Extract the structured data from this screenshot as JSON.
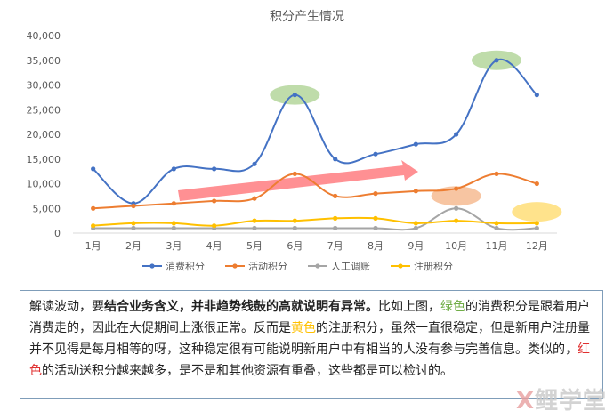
{
  "chart_data": {
    "type": "line",
    "title": "积分产生情况",
    "categories": [
      "1月",
      "2月",
      "3月",
      "4月",
      "5月",
      "6月",
      "7月",
      "8月",
      "9月",
      "10月",
      "11月",
      "12月"
    ],
    "ylim": [
      0,
      40000
    ],
    "yticks": [
      "0",
      "5,000",
      "10,000",
      "15,000",
      "20,000",
      "25,000",
      "30,000",
      "35,000",
      "40,000"
    ],
    "ytick_values": [
      0,
      5000,
      10000,
      15000,
      20000,
      25000,
      30000,
      35000,
      40000
    ],
    "grid": false,
    "legend_position": "bottom",
    "series": [
      {
        "name": "消费积分",
        "color": "#4472c4",
        "values": [
          13000,
          6000,
          13000,
          13000,
          14000,
          28000,
          15000,
          16000,
          18000,
          20000,
          35000,
          28000
        ]
      },
      {
        "name": "活动积分",
        "color": "#ed7d31",
        "values": [
          5000,
          5500,
          6000,
          6500,
          7000,
          12000,
          7500,
          8000,
          8500,
          9000,
          12000,
          10000
        ]
      },
      {
        "name": "人工调账",
        "color": "#a5a5a5",
        "values": [
          1000,
          1000,
          1000,
          1000,
          1000,
          1000,
          1000,
          1000,
          1000,
          5000,
          1000,
          1000
        ]
      },
      {
        "name": "注册积分",
        "color": "#ffc000",
        "values": [
          1500,
          2000,
          2000,
          1500,
          2500,
          2500,
          3000,
          3000,
          2000,
          2500,
          2000,
          2000
        ]
      }
    ],
    "highlights": [
      {
        "color": "#a9d08e",
        "month": "6月",
        "value": 28000
      },
      {
        "color": "#a9d08e",
        "month": "11月",
        "value": 35000
      },
      {
        "color": "#f4b183",
        "month": "10月",
        "value": 7500
      },
      {
        "color": "#ffd966",
        "month": "12月",
        "value": 4300
      }
    ],
    "trend_arrow_color": "#ff7c80"
  },
  "note": {
    "p1": "解读波动，要",
    "p2_bold": "结合业务含义，并非趋势线鼓的高就说明有异常。",
    "p3": "比如上图，",
    "green_word": "绿色",
    "p4": "的消费积分是跟着用户消费走的，因此在大促期间上涨很正常。反而是",
    "yellow_word": "黄色",
    "p5": "的注册积分，虽然一直很稳定，但是新用户注册量并不见得是每月相等的呀，这种稳定很有可能说明新用户中有相当的人没有参与完善信息。类似的，",
    "red_word": "红色",
    "p6": "的活动送积分越来越多，是不是和其他资源有重叠，这些都是可以检讨的。",
    "colors": {
      "green": "#70ad47",
      "yellow": "#ffc000",
      "red": "#e03030"
    }
  },
  "watermark": {
    "x": "X",
    "rest": "鲤学堂"
  }
}
